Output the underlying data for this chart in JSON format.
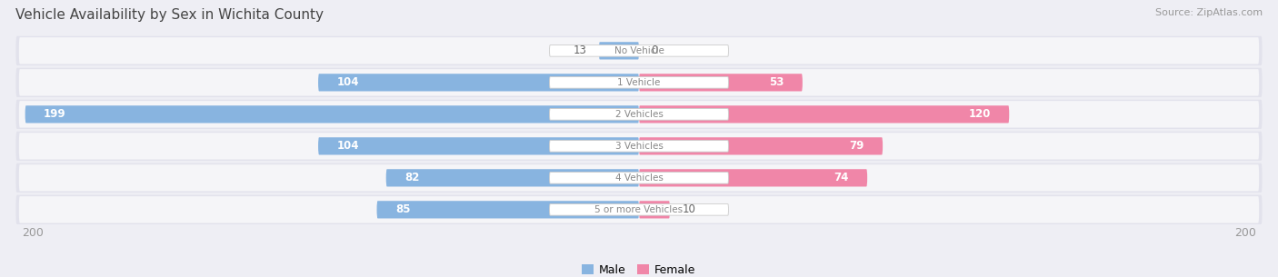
{
  "title": "Vehicle Availability by Sex in Wichita County",
  "source": "Source: ZipAtlas.com",
  "categories": [
    "No Vehicle",
    "1 Vehicle",
    "2 Vehicles",
    "3 Vehicles",
    "4 Vehicles",
    "5 or more Vehicles"
  ],
  "male_values": [
    13,
    104,
    199,
    104,
    82,
    85
  ],
  "female_values": [
    0,
    53,
    120,
    79,
    74,
    10
  ],
  "male_color": "#88b4e0",
  "female_color": "#f086a8",
  "male_label": "Male",
  "female_label": "Female",
  "max_val": 200,
  "bg_color": "#eeeef4",
  "row_bg_color": "#e2e2ec",
  "row_inner_color": "#f5f5f8",
  "title_color": "#444444",
  "source_color": "#999999",
  "label_color_inside": "#ffffff",
  "label_color_outside": "#666666",
  "axis_label_color": "#999999",
  "category_text_color": "#888888",
  "pill_bg": "#ffffff",
  "pill_border": "#cccccc"
}
